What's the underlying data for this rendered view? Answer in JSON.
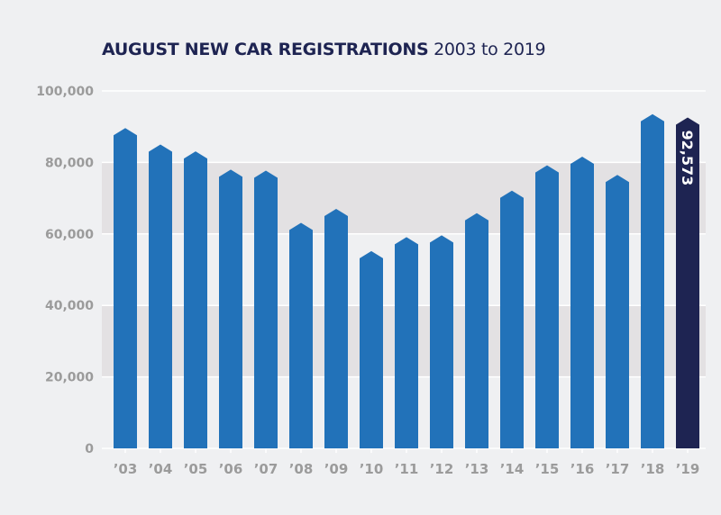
{
  "chart_data": {
    "type": "bar",
    "title": "AUGUST NEW CAR REGISTRATIONS",
    "subtitle": "2003 to 2019",
    "xlabel": "",
    "ylabel": "",
    "categories": [
      "’03",
      "’04",
      "’05",
      "’06",
      "’07",
      "’08",
      "’09",
      "’10",
      "’11",
      "’12",
      "’13",
      "’14",
      "’15",
      "’16",
      "’17",
      "’18",
      "’19"
    ],
    "values": [
      89600,
      85000,
      83100,
      78000,
      77700,
      63100,
      67000,
      55200,
      59100,
      59600,
      65800,
      72100,
      79200,
      81600,
      76500,
      93500,
      92573
    ],
    "ylim": [
      0,
      100000
    ],
    "yticks": [
      0,
      20000,
      40000,
      60000,
      80000,
      100000
    ],
    "ytick_labels": [
      "0",
      "20,000",
      "40,000",
      "60,000",
      "80,000",
      "100,000"
    ],
    "highlight": {
      "index": 16,
      "label": "92,573"
    },
    "grid": true,
    "alternating_bands": true,
    "colors": {
      "bar": "#2272b9",
      "highlight": "#1e2452",
      "background": "#eff0f2",
      "band": "#e3e1e3",
      "tick_text": "#9b9b9b",
      "title": "#1e2452"
    }
  }
}
